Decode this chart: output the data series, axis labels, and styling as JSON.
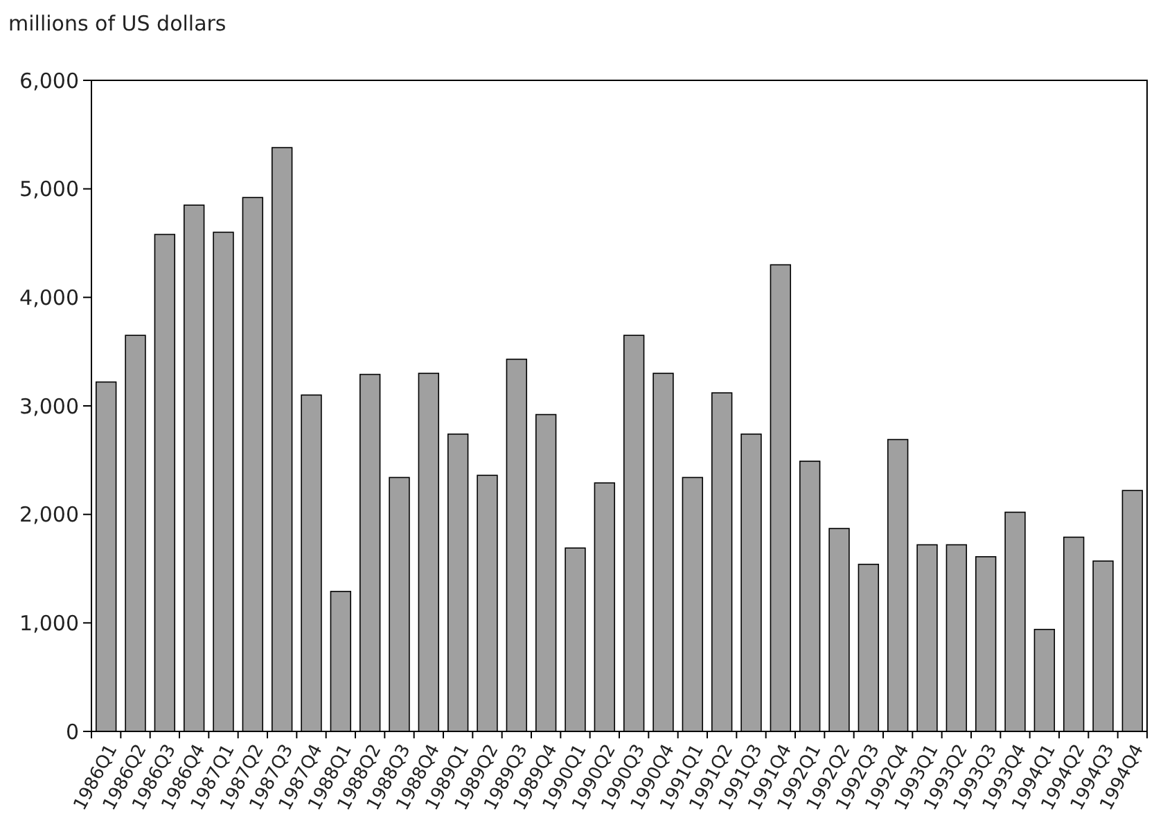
{
  "chart_data": {
    "type": "bar",
    "ylabel": "millions of US dollars",
    "categories": [
      "1986Q1",
      "1986Q2",
      "1986Q3",
      "1986Q4",
      "1987Q1",
      "1987Q2",
      "1987Q3",
      "1987Q4",
      "1988Q1",
      "1988Q2",
      "1988Q3",
      "1988Q4",
      "1989Q1",
      "1989Q2",
      "1989Q3",
      "1989Q4",
      "1990Q1",
      "1990Q2",
      "1990Q3",
      "1990Q4",
      "1991Q1",
      "1991Q2",
      "1991Q3",
      "1991Q4",
      "1992Q1",
      "1992Q2",
      "1992Q3",
      "1992Q4",
      "1993Q1",
      "1993Q2",
      "1993Q3",
      "1993Q4",
      "1994Q1",
      "1994Q2",
      "1994Q3",
      "1994Q4"
    ],
    "values": [
      3220,
      3650,
      4580,
      4850,
      4600,
      4920,
      5380,
      3100,
      1290,
      3290,
      2340,
      3300,
      2740,
      2360,
      3430,
      2920,
      1690,
      2290,
      3650,
      3300,
      2340,
      3120,
      2740,
      4300,
      2490,
      1870,
      1540,
      2690,
      1720,
      1720,
      1610,
      2020,
      940,
      1790,
      1570,
      2220
    ],
    "color": "#a0a0a0",
    "ylim": [
      0,
      6000
    ],
    "yticks": [
      {
        "value": 0,
        "label": "0"
      },
      {
        "value": 1000,
        "label": "1,000"
      },
      {
        "value": 2000,
        "label": "2,000"
      },
      {
        "value": 3000,
        "label": "3,000"
      },
      {
        "value": 4000,
        "label": "4,000"
      },
      {
        "value": 5000,
        "label": "5,000"
      },
      {
        "value": 6000,
        "label": "6,000"
      }
    ],
    "grid": false
  }
}
